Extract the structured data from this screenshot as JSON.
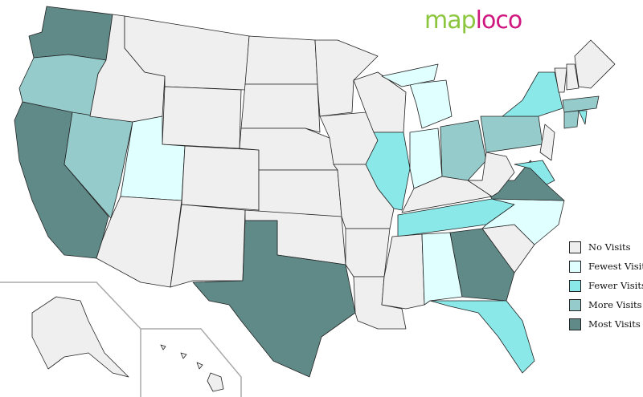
{
  "logo": {
    "part1": "map",
    "part2": "loco"
  },
  "colors": {
    "none": "#efefef",
    "fewest": "#e0ffff",
    "fewer": "#8ae8e8",
    "more": "#96cbcb",
    "most": "#5f8a88"
  },
  "legend": [
    {
      "key": "none",
      "label": "No Visits"
    },
    {
      "key": "fewest",
      "label": "Fewest Visits"
    },
    {
      "key": "fewer",
      "label": "Fewer Visits"
    },
    {
      "key": "more",
      "label": "More Visits"
    },
    {
      "key": "most",
      "label": "Most Visits"
    }
  ],
  "states": {
    "WA": "most",
    "OR": "more",
    "CA": "most",
    "NV": "more",
    "ID": "none",
    "MT": "none",
    "WY": "none",
    "UT": "fewest",
    "AZ": "none",
    "CO": "none",
    "NM": "none",
    "ND": "none",
    "SD": "none",
    "NE": "none",
    "KS": "none",
    "OK": "none",
    "TX": "most",
    "MN": "none",
    "IA": "none",
    "MO": "none",
    "AR": "none",
    "LA": "none",
    "WI": "none",
    "IL": "fewer",
    "MI": "fewest",
    "IN": "fewest",
    "OH": "more",
    "KY": "none",
    "TN": "fewer",
    "MS": "none",
    "AL": "fewest",
    "GA": "most",
    "FL": "fewer",
    "SC": "none",
    "NC": "fewest",
    "VA": "most",
    "WV": "none",
    "PA": "more",
    "NY": "fewer",
    "MD": "fewer",
    "NJ": "none",
    "VT": "none",
    "NH": "none",
    "ME": "none",
    "MA": "more",
    "CT": "more",
    "RI": "fewer",
    "AK": "none",
    "HI": "none"
  }
}
